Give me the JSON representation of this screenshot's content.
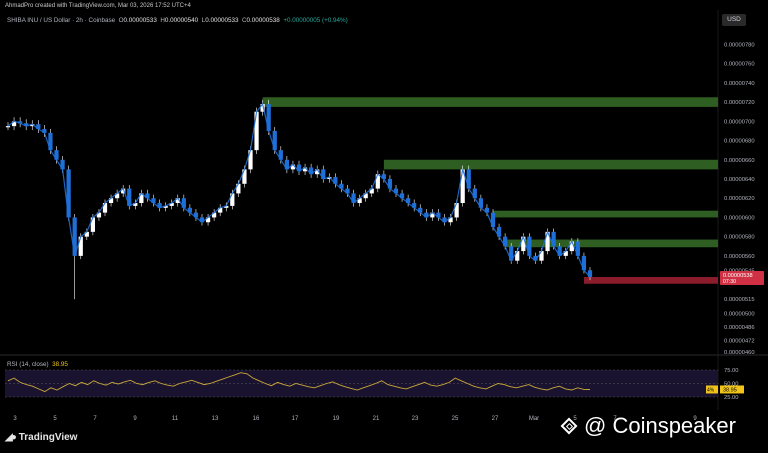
{
  "header": {
    "credit": "AhmadPro created with TradingView.com, Mar 03, 2026 17:52 UTC+4",
    "symbol": "SHIBA INU / US Dollar · 2h · Coinbase",
    "ohlc": {
      "o": "0.00000533",
      "h": "0.00000540",
      "l": "0.00000533",
      "c": "0.00000538",
      "change": "+0.00000005 (+0.94%)"
    },
    "currency_button": "USD"
  },
  "colors": {
    "candle": "#1f6fd8",
    "candle_wick": "#ffffff",
    "zone_resistance": "#2e5e22",
    "zone_support": "#8b1c2b",
    "rsi_line": "#c9a83a",
    "rsi_band": "#7e57c2"
  },
  "chart_data": [
    {
      "type": "line",
      "title": "SHIBA INU / US Dollar · 2h · Coinbase",
      "xlabel": "",
      "ylabel": "",
      "x_ticks": [
        "3",
        "5",
        "7",
        "9",
        "11",
        "13",
        "16",
        "17",
        "19",
        "21",
        "23",
        "25",
        "27",
        "Mar",
        "5",
        "7",
        "9"
      ],
      "y_ticks": [
        "0.00000780",
        "0.00000760",
        "0.00000740",
        "0.00000720",
        "0.00000700",
        "0.00000680",
        "0.00000660",
        "0.00000640",
        "0.00000620",
        "0.00000600",
        "0.00000580",
        "0.00000560",
        "0.00000545",
        "0.00000515",
        "0.00000500",
        "0.00000486",
        "0.00000472",
        "0.00000460"
      ],
      "ylim": [
        4.6e-06,
        7.95e-06
      ],
      "series": [
        {
          "values": [
            6.95e-06,
            7e-06,
            6.98e-06,
            6.95e-06,
            6.97e-06,
            6.92e-06,
            6.88e-06,
            6.7e-06,
            6.6e-06,
            6.5e-06,
            6e-06,
            5.6e-06,
            5.8e-06,
            5.85e-06,
            6e-06,
            6.05e-06,
            6.15e-06,
            6.2e-06,
            6.25e-06,
            6.3e-06,
            6.12e-06,
            6.15e-06,
            6.25e-06,
            6.2e-06,
            6.15e-06,
            6.1e-06,
            6.12e-06,
            6.15e-06,
            6.2e-06,
            6.1e-06,
            6.05e-06,
            6e-06,
            5.95e-06,
            6e-06,
            6.05e-06,
            6.1e-06,
            6.12e-06,
            6.25e-06,
            6.35e-06,
            6.5e-06,
            6.7e-06,
            7.1e-06,
            7.18e-06,
            6.9e-06,
            6.7e-06,
            6.6e-06,
            6.5e-06,
            6.55e-06,
            6.48e-06,
            6.52e-06,
            6.45e-06,
            6.5e-06,
            6.4e-06,
            6.42e-06,
            6.35e-06,
            6.3e-06,
            6.25e-06,
            6.15e-06,
            6.2e-06,
            6.25e-06,
            6.3e-06,
            6.45e-06,
            6.4e-06,
            6.3e-06,
            6.25e-06,
            6.2e-06,
            6.15e-06,
            6.1e-06,
            6.05e-06,
            6e-06,
            6.05e-06,
            6e-06,
            5.95e-06,
            6e-06,
            6.15e-06,
            6.5e-06,
            6.3e-06,
            6.2e-06,
            6.1e-06,
            6.05e-06,
            5.9e-06,
            5.8e-06,
            5.7e-06,
            5.55e-06,
            5.65e-06,
            5.8e-06,
            5.6e-06,
            5.55e-06,
            5.65e-06,
            5.85e-06,
            5.7e-06,
            5.6e-06,
            5.65e-06,
            5.75e-06,
            5.6e-06,
            5.45e-06,
            5.38e-06
          ],
          "low_wick": 5.15e-06
        }
      ],
      "zones": [
        {
          "kind": "resistance",
          "top": 7.25e-06,
          "bottom": 7.15e-06,
          "from_index": 42
        },
        {
          "kind": "resistance",
          "top": 6.6e-06,
          "bottom": 6.5e-06,
          "from_index": 62
        },
        {
          "kind": "resistance",
          "top": 6.07e-06,
          "bottom": 6e-06,
          "from_index": 80
        },
        {
          "kind": "resistance",
          "top": 5.77e-06,
          "bottom": 5.69e-06,
          "from_index": 82
        },
        {
          "kind": "support",
          "top": 5.38e-06,
          "bottom": 5.31e-06,
          "from_index": 95
        }
      ],
      "price_labels": {
        "last_price": "0.00000538",
        "countdown": "07:30",
        "current_tick": "0.00000545"
      }
    },
    {
      "type": "line",
      "title": "RSI (14, close)",
      "value": "38.95",
      "ylim": [
        0,
        100
      ],
      "y_ticks": [
        "75.00",
        "50.00",
        "25.00"
      ],
      "band": [
        30,
        70
      ],
      "series": [
        {
          "values": [
            55,
            60,
            52,
            48,
            45,
            40,
            35,
            42,
            38,
            44,
            50,
            46,
            52,
            48,
            55,
            50,
            47,
            52,
            49,
            53,
            56,
            50,
            48,
            52,
            55,
            50,
            47,
            45,
            50,
            53,
            56,
            52,
            48,
            50,
            54,
            58,
            62,
            66,
            70,
            68,
            60,
            55,
            50,
            46,
            52,
            48,
            45,
            50,
            47,
            44,
            42,
            46,
            50,
            53,
            48,
            44,
            41,
            38,
            42,
            46,
            50,
            55,
            48,
            45,
            42,
            40,
            44,
            48,
            52,
            47,
            45,
            48,
            52,
            60,
            55,
            50,
            45,
            42,
            40,
            45,
            50,
            48,
            44,
            42,
            45,
            48,
            43,
            40,
            38,
            42,
            45,
            40,
            38,
            42,
            39,
            38.95
          ]
        }
      ],
      "value_labels": [
        "4%",
        "38.95"
      ]
    }
  ],
  "footer": {
    "brand": "TradingView",
    "watermark": "@ Coinspeaker"
  }
}
